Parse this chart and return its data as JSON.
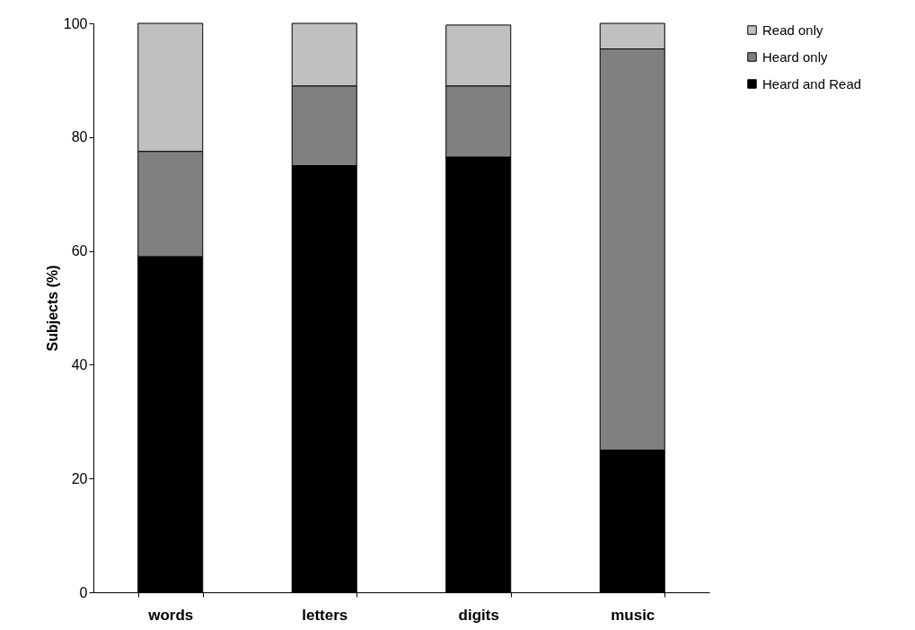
{
  "chart_data": {
    "type": "bar",
    "stacked": true,
    "categories": [
      "words",
      "letters",
      "digits",
      "music"
    ],
    "ylabel": "Subjects (%)",
    "ylim": [
      0,
      100
    ],
    "yticks": [
      0,
      20,
      40,
      60,
      80,
      100
    ],
    "grid": false,
    "legend": "right",
    "series": [
      {
        "name": "Heard and Read",
        "color": "#000000",
        "values": [
          59,
          75,
          76.5,
          25
        ]
      },
      {
        "name": "Heard only",
        "color": "#808080",
        "values": [
          18.5,
          14,
          12.5,
          70.5
        ]
      },
      {
        "name": "Read only",
        "color": "#c0c0c0",
        "values": [
          22.5,
          11,
          10.7,
          4.5
        ]
      }
    ]
  }
}
